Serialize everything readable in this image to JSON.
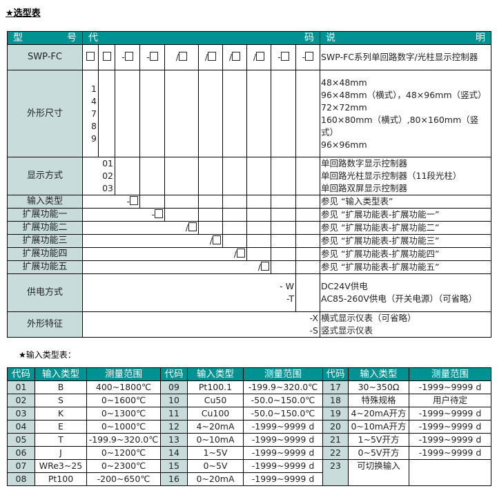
{
  "title": "★选型表",
  "selection": {
    "header": {
      "model": [
        "型",
        "号"
      ],
      "code": [
        "代",
        "码"
      ],
      "desc": [
        "说",
        "明"
      ]
    },
    "model": {
      "label": "SWP-FC",
      "codes": [
        "□",
        "□",
        "-□",
        "-□",
        "/□",
        "/□",
        "/□",
        "/□",
        "-□",
        "-□"
      ],
      "desc": "SWP-FC系列单回路数字/光柱显示控制器"
    },
    "rows": [
      {
        "label": "外形尺寸",
        "span": 1,
        "codes": "1\n4\n7\n8\n9",
        "desc": [
          "48×48mm",
          "96×48mm（横式），48×96mm（竖式）",
          "72×72mm",
          "160×80mm（横式）,80×160mm（竖式）",
          "96×96mm"
        ]
      },
      {
        "label": "显示方式",
        "span": 2,
        "codes": "01\n02\n03",
        "desc": [
          "单回路数字显示控制器",
          "单回路光柱显示控制器（11段光柱）",
          "单回路双屏显示控制器"
        ]
      },
      {
        "label": "输入类型",
        "span": 3,
        "codes": "-□",
        "desc": [
          "参见 “输入类型表”"
        ]
      },
      {
        "label": "扩展功能一",
        "span": 4,
        "codes": "-□",
        "desc": [
          "参见 “扩展功能表-扩展功能一”"
        ]
      },
      {
        "label": "扩展功能二",
        "span": 5,
        "codes": "/□",
        "desc": [
          "参见 “扩展功能表-扩展功能二”"
        ]
      },
      {
        "label": "扩展功能三",
        "span": 6,
        "codes": "/□",
        "desc": [
          "参见 “扩展功能表-扩展功能三”"
        ]
      },
      {
        "label": "扩展功能四",
        "span": 7,
        "codes": "/□",
        "desc": [
          "参见 “扩展功能表-扩展功能四”"
        ]
      },
      {
        "label": "扩展功能五",
        "span": 8,
        "codes": "/□",
        "desc": [
          "参见 “扩展功能表-扩展功能五”"
        ]
      },
      {
        "label": "供电方式",
        "span": 9,
        "codes": "-  W\n-T",
        "desc": [
          "DC24V供电",
          "AC85-260V供电（开关电源）（可省略）"
        ]
      },
      {
        "label": "外形特征",
        "span": 10,
        "codes": "-X\n-S",
        "desc": [
          "横式显示仪表（可省略）",
          "竖式显示仪表"
        ]
      }
    ]
  },
  "input_title": "★输入类型表：",
  "input_table": {
    "headers": [
      "代码",
      "输入类型",
      "测量范围",
      "代码",
      "输入类型",
      "测量范围",
      "代码",
      "输入类型",
      "测量范围"
    ],
    "rows": [
      [
        "01",
        "B",
        "400~1800℃",
        "09",
        "Pt100.1",
        "-199.9~320.0℃",
        "17",
        "30~350Ω",
        "-1999~9999 d"
      ],
      [
        "02",
        "S",
        "0~1600℃",
        "10",
        "Cu50",
        "-50.0~150.0℃",
        "18",
        "特殊规格",
        "用户待定"
      ],
      [
        "03",
        "K",
        "0~1300℃",
        "11",
        "Cu100",
        "-50.0~150.0℃",
        "19",
        "4~20mA开方",
        "-1999~9999 d"
      ],
      [
        "04",
        "E",
        "0~1000℃",
        "12",
        "4~20mA",
        "-1999~9999 d",
        "20",
        "0~10mA开方",
        "-1999~9999 d"
      ],
      [
        "05",
        "T",
        "-199.9~320.0℃",
        "13",
        "0~10mA",
        "-1999~9999 d",
        "21",
        "1~5V开方",
        "-1999~9999 d"
      ],
      [
        "06",
        "J",
        "0~1200℃",
        "14",
        "1~5V",
        "-1999~9999 d",
        "22",
        "0~5V开方",
        "-1999~9999 d"
      ],
      [
        "07",
        "WRe3~25",
        "0~2300℃",
        "15",
        "0~5V",
        "-1999~9999 d",
        "23",
        "可切换输入",
        ""
      ],
      [
        "08",
        "Pt100",
        "-200~650℃",
        "16",
        "0~20mA",
        "-1999~9999 d",
        "",
        "",
        ""
      ]
    ]
  },
  "colors": {
    "header_bg": "#009193",
    "label_bg": "#c8dcdc"
  }
}
